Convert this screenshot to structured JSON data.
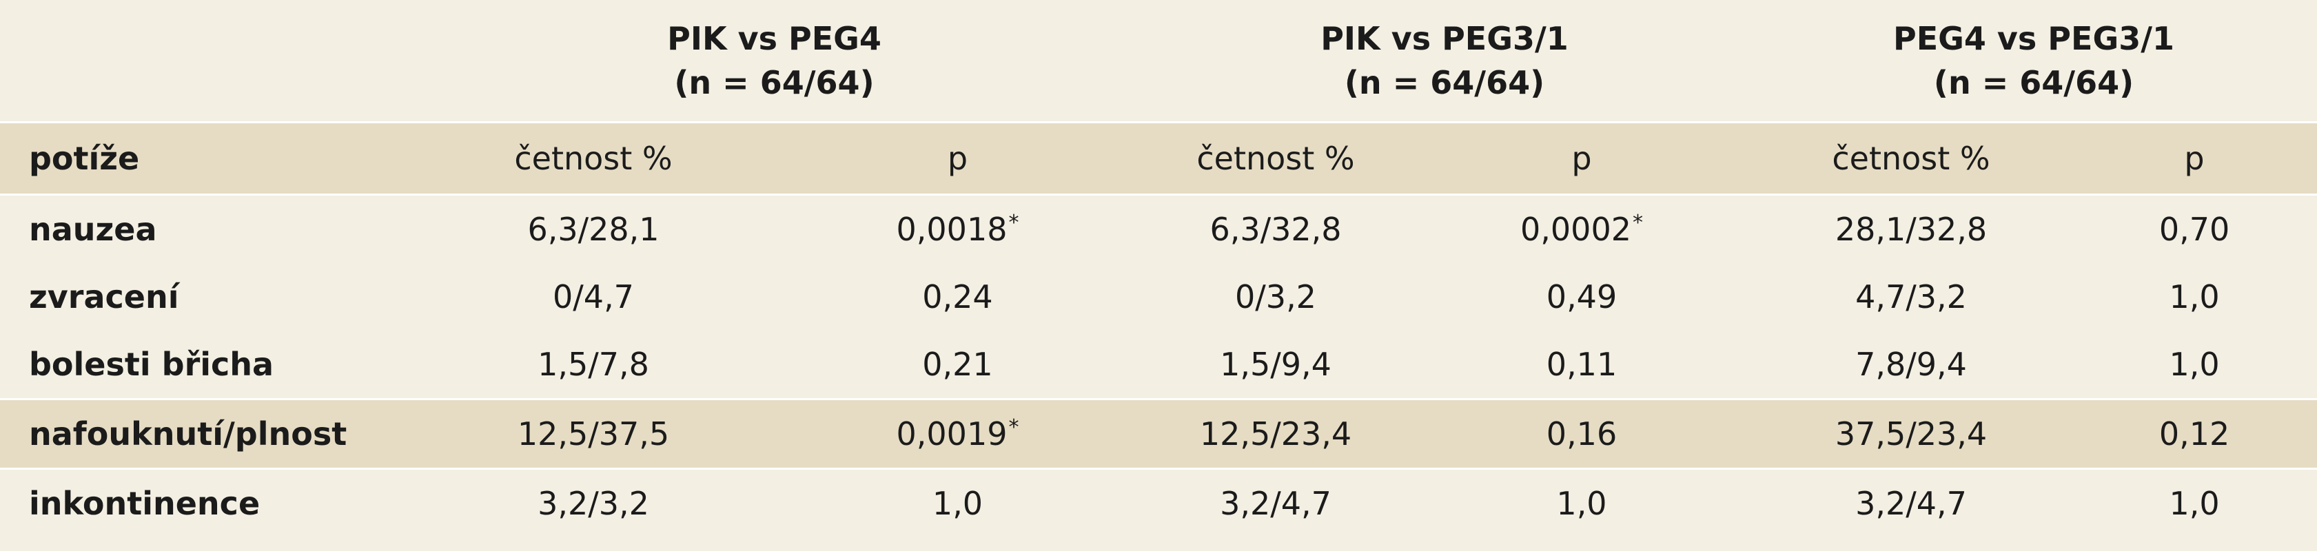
{
  "groups": [
    {
      "line1": "PIK vs PEG4",
      "line2": "(n = 64/64)"
    },
    {
      "line1": "PIK vs PEG3/1",
      "line2": "(n = 64/64)"
    },
    {
      "line1": "PEG4 vs PEG3/1",
      "line2": "(n = 64/64)"
    }
  ],
  "header": {
    "label": "potíže",
    "freq": "četnost %",
    "p": "p"
  },
  "rows": [
    {
      "label": "nauzea",
      "cells": [
        {
          "v": "6,3/28,1"
        },
        {
          "v": "0,0018",
          "star": "*"
        },
        {
          "v": "6,3/32,8"
        },
        {
          "v": "0,0002",
          "star": "*"
        },
        {
          "v": "28,1/32,8"
        },
        {
          "v": "0,70"
        }
      ]
    },
    {
      "label": "zvracení",
      "cells": [
        {
          "v": "0/4,7"
        },
        {
          "v": "0,24"
        },
        {
          "v": "0/3,2"
        },
        {
          "v": "0,49"
        },
        {
          "v": "4,7/3,2"
        },
        {
          "v": "1,0"
        }
      ]
    },
    {
      "label": "bolesti břicha",
      "cells": [
        {
          "v": "1,5/7,8"
        },
        {
          "v": "0,21"
        },
        {
          "v": "1,5/9,4"
        },
        {
          "v": "0,11"
        },
        {
          "v": "7,8/9,4"
        },
        {
          "v": "1,0"
        }
      ]
    },
    {
      "label": "nafouknutí/plnost",
      "cells": [
        {
          "v": "12,5/37,5"
        },
        {
          "v": "0,0019",
          "star": "*"
        },
        {
          "v": "12,5/23,4"
        },
        {
          "v": "0,16"
        },
        {
          "v": "37,5/23,4"
        },
        {
          "v": "0,12"
        }
      ]
    },
    {
      "label": "inkontinence",
      "cells": [
        {
          "v": "3,2/3,2"
        },
        {
          "v": "1,0"
        },
        {
          "v": "3,2/4,7"
        },
        {
          "v": "1,0"
        },
        {
          "v": "3,2/4,7"
        },
        {
          "v": "1,0"
        }
      ]
    }
  ]
}
